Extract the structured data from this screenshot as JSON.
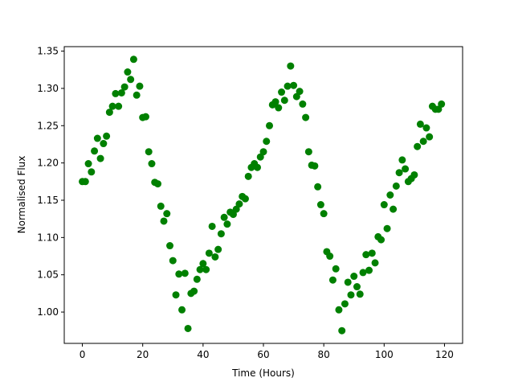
{
  "chart_data": {
    "type": "scatter",
    "title": "",
    "xlabel": "Time (Hours)",
    "ylabel": "Normalised Flux",
    "xlim": [
      -6,
      126
    ],
    "ylim": [
      0.958,
      1.356
    ],
    "xticks": [
      0,
      20,
      40,
      60,
      80,
      100,
      120
    ],
    "yticks": [
      1.0,
      1.05,
      1.1,
      1.15,
      1.2,
      1.25,
      1.3,
      1.35
    ],
    "grid": false,
    "legend": "none",
    "marker_color": "#008000",
    "series": [
      {
        "x": [
          0,
          1,
          2,
          3,
          4,
          5,
          6,
          7,
          8,
          9,
          10,
          11,
          12,
          13,
          14,
          15,
          16,
          17,
          18,
          19,
          20,
          21,
          22,
          23,
          24,
          25,
          26,
          27,
          28,
          29,
          30,
          31,
          32,
          33,
          34,
          35,
          36,
          37,
          38,
          39,
          40,
          41,
          42,
          43,
          44,
          45,
          46,
          47,
          48,
          49,
          50,
          51,
          52,
          53,
          54,
          55,
          56,
          57,
          58,
          59,
          60,
          61,
          62,
          63,
          64,
          65,
          66,
          67,
          68,
          69,
          70,
          71,
          72,
          73,
          74,
          75,
          76,
          77,
          78,
          79,
          80,
          81,
          82,
          83,
          84,
          85,
          86,
          87,
          88,
          89,
          90,
          91,
          92,
          93,
          94,
          95,
          96,
          97,
          98,
          99,
          100,
          101,
          102,
          103,
          104,
          105,
          106,
          107,
          108,
          109,
          110,
          111,
          112,
          113,
          114,
          115,
          116,
          117,
          118,
          119
        ],
        "y": [
          1.175,
          1.175,
          1.199,
          1.188,
          1.216,
          1.233,
          1.206,
          1.226,
          1.236,
          1.268,
          1.276,
          1.293,
          1.276,
          1.294,
          1.302,
          1.322,
          1.312,
          1.339,
          1.291,
          1.303,
          1.261,
          1.262,
          1.215,
          1.199,
          1.174,
          1.172,
          1.142,
          1.122,
          1.132,
          1.089,
          1.069,
          1.023,
          1.051,
          1.003,
          1.052,
          0.978,
          1.025,
          1.028,
          1.044,
          1.057,
          1.065,
          1.057,
          1.079,
          1.115,
          1.074,
          1.084,
          1.105,
          1.127,
          1.118,
          1.134,
          1.131,
          1.138,
          1.145,
          1.155,
          1.152,
          1.182,
          1.194,
          1.199,
          1.194,
          1.208,
          1.215,
          1.229,
          1.25,
          1.278,
          1.282,
          1.274,
          1.295,
          1.284,
          1.303,
          1.33,
          1.304,
          1.289,
          1.296,
          1.279,
          1.261,
          1.215,
          1.197,
          1.196,
          1.168,
          1.144,
          1.132,
          1.081,
          1.075,
          1.043,
          1.058,
          1.003,
          0.975,
          1.011,
          1.04,
          1.023,
          1.048,
          1.034,
          1.024,
          1.053,
          1.077,
          1.056,
          1.079,
          1.066,
          1.101,
          1.097,
          1.144,
          1.112,
          1.157,
          1.138,
          1.169,
          1.187,
          1.204,
          1.192,
          1.175,
          1.179,
          1.184,
          1.222,
          1.252,
          1.229,
          1.247,
          1.235,
          1.276,
          1.272,
          1.272,
          1.279
        ]
      }
    ]
  }
}
